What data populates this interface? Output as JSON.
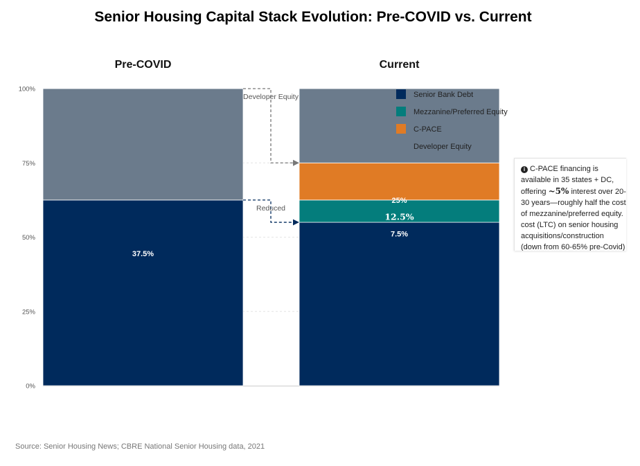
{
  "title": "Senior Housing Capital Stack Evolution: Pre-COVID vs. Current",
  "source": "Source: Senior Housing News; CBRE National Senior Housing data, 2021",
  "note": {
    "icon": "info-icon",
    "line1": "C-PACE financing is available in 35 states + DC, offering",
    "highlight": "~5%",
    "line2": "interest over 20-30 years—roughly half the cost of mezzanine/preferred equity.",
    "line3": "cost (LTC) on senior housing acquisitions/construction (down from 60-65% pre-Covid)"
  },
  "chart_data": {
    "type": "bar",
    "stacked": true,
    "categories": [
      "Pre-COVID",
      "Current"
    ],
    "ylim": [
      0,
      100
    ],
    "yticks": [
      "0%",
      "25%",
      "50%",
      "75%",
      "100%"
    ],
    "grid": true,
    "legend_position": "top-right",
    "series": [
      {
        "name": "Senior Bank Debt",
        "color": "#002a5c",
        "values": [
          62.5,
          55
        ]
      },
      {
        "name": "Mezzanine/Preferred Equity",
        "color": "#047d7c",
        "values": [
          0,
          7.5
        ]
      },
      {
        "name": "C-PACE",
        "color": "#e07b25",
        "values": [
          0,
          12.5
        ]
      },
      {
        "name": "Developer Equity",
        "color": "#6b7b8c",
        "values": [
          37.5,
          25
        ]
      }
    ],
    "data_labels": [
      {
        "text": "37.5%",
        "category": "Pre-COVID",
        "y": 44.5,
        "style": "normal"
      },
      {
        "text": "25%",
        "category": "Current",
        "y": 62.5,
        "style": "normal"
      },
      {
        "text": "12.5%",
        "category": "Current",
        "y": 56.8,
        "style": "serif"
      },
      {
        "text": "7.5%",
        "category": "Current",
        "y": 51.2,
        "style": "normal"
      }
    ],
    "connectors": [
      {
        "label": "Developer Equity",
        "from_y": 100,
        "to_y": 75,
        "color": "#777777"
      },
      {
        "label": "Reduced",
        "from_y": 62.5,
        "to_y": 55,
        "color": "#002a5c"
      }
    ]
  }
}
